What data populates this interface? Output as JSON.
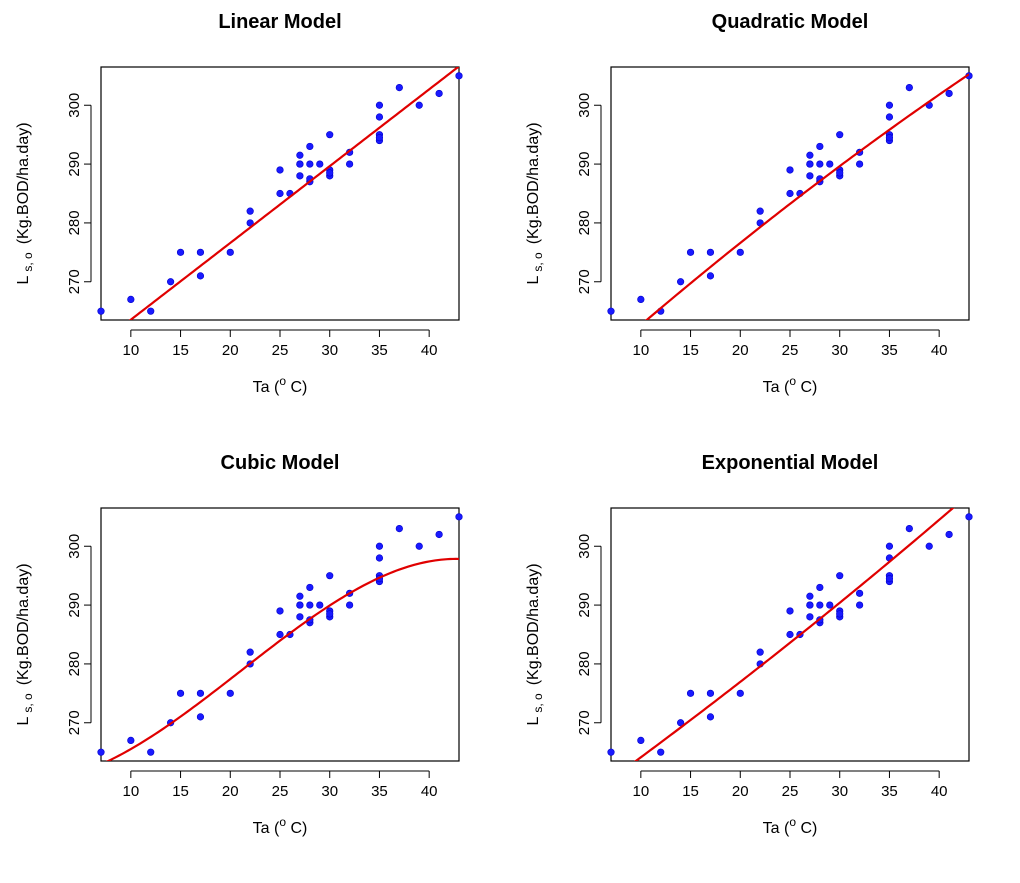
{
  "chart_data": [
    {
      "type": "scatter",
      "title": "Linear Model",
      "xlabel": "Ta (o C)",
      "ylabel": "L s, o (Kg.BOD/ha.day)",
      "xlim": [
        7,
        43
      ],
      "ylim": [
        263.5,
        306.5
      ],
      "xticks": [
        "10",
        "15",
        "20",
        "25",
        "30",
        "35",
        "40"
      ],
      "yticks": [
        "270",
        "280",
        "290",
        "300"
      ],
      "x": [
        7,
        10,
        12,
        14,
        15,
        17,
        17,
        20,
        22,
        22,
        25,
        25,
        26,
        27,
        27,
        27,
        27,
        28,
        28,
        28,
        28,
        29,
        30,
        30,
        30,
        30,
        32,
        32,
        35,
        35,
        35,
        35,
        35,
        37,
        39,
        41,
        43
      ],
      "y": [
        265,
        267,
        265,
        270,
        275,
        275,
        271,
        275,
        282,
        280,
        289,
        285,
        285,
        291.5,
        290,
        290,
        288,
        293,
        290,
        287,
        287.5,
        290,
        295,
        289,
        288,
        288.5,
        292,
        290,
        300,
        298,
        295,
        294,
        294.5,
        303,
        300,
        302,
        305
      ],
      "fit": {
        "name": "Linear",
        "kind": "linear",
        "coef": [
          250.5,
          1.305
        ]
      }
    },
    {
      "type": "scatter",
      "title": "Quadratic Model",
      "xlabel": "Ta (o C)",
      "ylabel": "L s, o (Kg.BOD/ha.day)",
      "xlim": [
        7,
        43
      ],
      "ylim": [
        263.5,
        306.5
      ],
      "xticks": [
        "10",
        "15",
        "20",
        "25",
        "30",
        "35",
        "40"
      ],
      "yticks": [
        "270",
        "280",
        "290",
        "300"
      ],
      "x": [
        7,
        10,
        12,
        14,
        15,
        17,
        17,
        20,
        22,
        22,
        25,
        25,
        26,
        27,
        27,
        27,
        27,
        28,
        28,
        28,
        28,
        29,
        30,
        30,
        30,
        30,
        32,
        32,
        35,
        35,
        35,
        35,
        35,
        37,
        39,
        41,
        43
      ],
      "y": [
        265,
        267,
        265,
        270,
        275,
        275,
        271,
        275,
        282,
        280,
        289,
        285,
        285,
        291.5,
        290,
        290,
        288,
        293,
        290,
        287,
        287.5,
        290,
        295,
        289,
        288,
        288.5,
        292,
        290,
        300,
        298,
        295,
        294,
        294.5,
        303,
        300,
        302,
        305
      ],
      "fit": {
        "name": "Quadratic",
        "kind": "poly",
        "coef": [
          247.8,
          1.53,
          -0.0045
        ]
      }
    },
    {
      "type": "scatter",
      "title": "Cubic Model",
      "xlabel": "Ta (o C)",
      "ylabel": "L s, o (Kg.BOD/ha.day)",
      "xlim": [
        7,
        43
      ],
      "ylim": [
        263.5,
        306.5
      ],
      "xticks": [
        "10",
        "15",
        "20",
        "25",
        "30",
        "35",
        "40"
      ],
      "yticks": [
        "270",
        "280",
        "290",
        "300"
      ],
      "x": [
        7,
        10,
        12,
        14,
        15,
        17,
        17,
        20,
        22,
        22,
        25,
        25,
        26,
        27,
        27,
        27,
        27,
        28,
        28,
        28,
        28,
        29,
        30,
        30,
        30,
        30,
        32,
        32,
        35,
        35,
        35,
        35,
        35,
        37,
        39,
        41,
        43
      ],
      "y": [
        265,
        267,
        265,
        270,
        275,
        275,
        271,
        275,
        282,
        280,
        289,
        285,
        285,
        291.5,
        290,
        290,
        288,
        293,
        290,
        287,
        287.5,
        290,
        295,
        289,
        288,
        288.5,
        292,
        290,
        300,
        298,
        295,
        294,
        294.5,
        303,
        300,
        302,
        305
      ],
      "fit": {
        "name": "Cubic",
        "kind": "poly",
        "coef": [
          259.9,
          0.062,
          0.0595,
          -0.00094
        ]
      }
    },
    {
      "type": "scatter",
      "title": "Exponential Model",
      "xlabel": "Ta (o C)",
      "ylabel": "L s, o (Kg.BOD/ha.day)",
      "xlim": [
        7,
        43
      ],
      "ylim": [
        263.5,
        306.5
      ],
      "xticks": [
        "10",
        "15",
        "20",
        "25",
        "30",
        "35",
        "40"
      ],
      "yticks": [
        "270",
        "280",
        "290",
        "300"
      ],
      "x": [
        7,
        10,
        12,
        14,
        15,
        17,
        17,
        20,
        22,
        22,
        25,
        25,
        26,
        27,
        27,
        27,
        27,
        28,
        28,
        28,
        28,
        29,
        30,
        30,
        30,
        30,
        32,
        32,
        35,
        35,
        35,
        35,
        35,
        37,
        39,
        41,
        43
      ],
      "y": [
        265,
        267,
        265,
        270,
        275,
        275,
        271,
        275,
        282,
        280,
        289,
        285,
        285,
        291.5,
        290,
        290,
        288,
        293,
        290,
        287,
        287.5,
        290,
        295,
        289,
        288,
        288.5,
        292,
        290,
        300,
        298,
        295,
        294,
        294.5,
        303,
        300,
        302,
        305
      ],
      "fit": {
        "name": "Exponential",
        "kind": "exp",
        "coef": [
          251.9,
          0.00474
        ]
      }
    }
  ],
  "labels": {
    "x_main": "Ta (",
    "x_sup": "o",
    "x_unit": " C)",
    "y_main": "L",
    "y_sub": "s, o",
    "y_unit": "(Kg.BOD/ha.day)"
  },
  "colors": {
    "points": "#1a1aff",
    "fit_line": "#e00000",
    "axes": "#000000"
  }
}
